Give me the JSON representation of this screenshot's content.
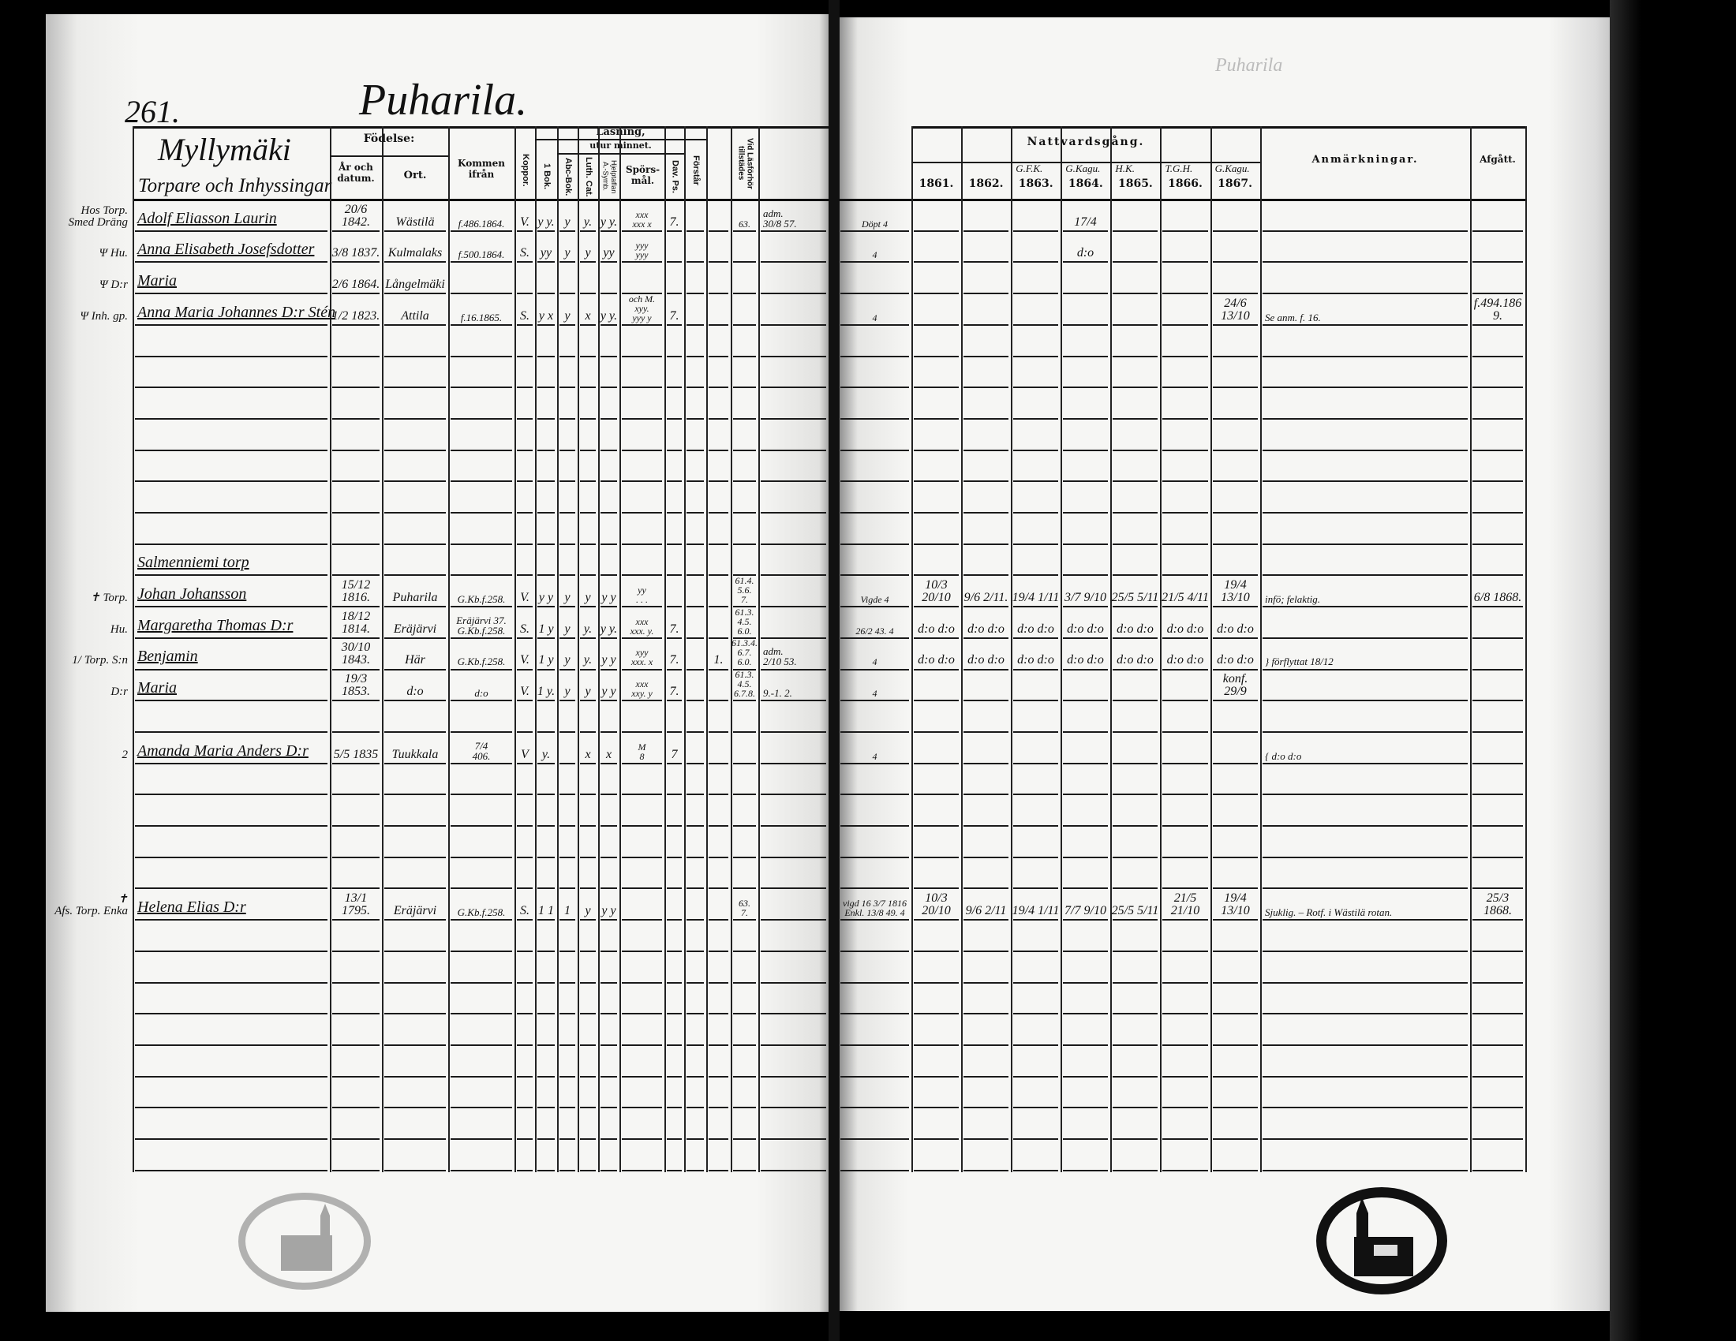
{
  "document": {
    "page_number": "261.",
    "village_title": "Puharila.",
    "right_page_pencil_note": "Puharila",
    "left_header": {
      "section_title": "Myllymäki",
      "section_subtitle": "Torpare och Inhyssingar",
      "birth_group": "Födelse:",
      "birth_date": "År och datum.",
      "birth_place": "Ort.",
      "came_from": "Kommen ifrån",
      "smallpox": "Koppor.",
      "reading_group": "Läsning,",
      "by_heart_group": "utur minnet.",
      "book1": "1 Bok.",
      "abc_book": "Abc-Bok.",
      "luth_cat": "Luth. Cat.",
      "help_symb": "Hjelptaflan A.-Symb.",
      "questions": "Spörs-mål.",
      "dav_ps": "Dav. Ps.",
      "understands": "Förstår",
      "exam_present": "Vid Läsförhör tillstädes"
    },
    "right_header": {
      "communion_group": "Nattvardsgång.",
      "years": [
        {
          "year": "1861.",
          "note": ""
        },
        {
          "year": "1862.",
          "note": ""
        },
        {
          "year": "1863.",
          "note": "G.F.K."
        },
        {
          "year": "1864.",
          "note": "G.Kagu."
        },
        {
          "year": "1865.",
          "note": "H.K."
        },
        {
          "year": "1866.",
          "note": "T.G.H."
        },
        {
          "year": "1867.",
          "note": "G.Kagu."
        }
      ],
      "remarks": "Anmärkningar.",
      "departed": "Afgått."
    },
    "left_rows": [
      {
        "margin": "Hos Torp.\nSmed Dräng",
        "name": "Adolf Eliasson Laurin",
        "date": "20/6 1842.",
        "place": "Wästilä",
        "from": "f.486.1864.",
        "koppor": "V.",
        "bok1": "y y.",
        "abc": "y",
        "luth": "y.",
        "hjelp": "y y.",
        "spors": "xxx\nxxx x",
        "dav": "7.",
        "forstar": "",
        "extra": "",
        "lasf": "63.",
        "note": "adm.\n30/8 57."
      },
      {
        "margin": "Ψ Hu.",
        "name": "Anna Elisabeth Josefsdotter",
        "date": "3/8 1837.",
        "place": "Kulmalaks",
        "from": "f.500.1864.",
        "koppor": "S.",
        "bok1": "yy",
        "abc": "y",
        "luth": "y",
        "hjelp": "yy",
        "spors": "yyy\nyyy",
        "dav": "",
        "forstar": "",
        "extra": "",
        "lasf": "",
        "note": ""
      },
      {
        "margin": "Ψ D:r",
        "name": "Maria",
        "date": "2/6 1864.",
        "place": "Långelmäki"
      },
      {
        "margin": "Ψ Inh. gp.",
        "name": "Anna Maria Johannes D:r Stén",
        "date": "1/2 1823.",
        "place": "Attila",
        "from": "f.16.1865.",
        "koppor": "S.",
        "bok1": "y x",
        "abc": "y",
        "luth": "x",
        "hjelp": "y y.",
        "spors": "och M.\nxyy.\nyyy y",
        "dav": "7."
      },
      {},
      {},
      {},
      {},
      {},
      {},
      {},
      {
        "name": "Salmenniemi torp"
      },
      {
        "margin": "✝ Torp.",
        "name": "Johan Johansson",
        "date": "15/12 1816.",
        "place": "Puharila",
        "from": "G.Kb.f.258.",
        "koppor": "V.",
        "bok1": "y y",
        "abc": "y",
        "luth": "y",
        "hjelp": "y y",
        "spors": "yy\n. . .",
        "lasf": "61.4.\n5.6.\n7."
      },
      {
        "margin": "Hu.",
        "name": "Margaretha Thomas D:r",
        "date": "18/12 1814.",
        "place": "Eräjärvi",
        "from": "Eräjärvi 37.\nG.Kb.f.258.",
        "koppor": "S.",
        "bok1": "1 y",
        "abc": "y",
        "luth": "y.",
        "hjelp": "y y.",
        "spors": "xxx\nxxx. y.",
        "dav": "7.",
        "lasf": "61.3.\n4.5.\n6.0."
      },
      {
        "margin": "1/ Torp. S:n",
        "name": "Benjamin",
        "date": "30/10 1843.",
        "place": "Här",
        "from": "G.Kb.f.258.",
        "koppor": "V.",
        "bok1": "1 y",
        "abc": "y",
        "luth": "y.",
        "hjelp": "y y",
        "spors": "xyy\nxxx. x",
        "dav": "7.",
        "extra": "1.",
        "lasf": "61.3.4.\n6.7.\n6.0.",
        "note": "adm.\n2/10 53."
      },
      {
        "margin": "D:r",
        "name": "Maria",
        "date": "19/3 1853.",
        "place": "d:o",
        "from": "d:o",
        "koppor": "V.",
        "bok1": "1 y.",
        "abc": "y",
        "luth": "y",
        "hjelp": "y y",
        "spors": "xxx\nxxy. y",
        "dav": "7.",
        "lasf": "61.3.\n4.5.\n6.7.8.",
        "note": "9.-1. 2."
      },
      {},
      {
        "margin": "2",
        "name": "Amanda Maria Anders D:r",
        "date": "5/5 1835",
        "place": "Tuukkala",
        "from": "7/4\n406.",
        "koppor": "V",
        "bok1": "y.",
        "luth": "x",
        "hjelp": "x",
        "spors": "M\n8",
        "dav": "7"
      },
      {},
      {},
      {},
      {},
      {
        "margin": "✝\nAfs. Torp. Enka",
        "name": "Helena Elias D:r",
        "date": "13/1 1795.",
        "place": "Eräjärvi",
        "from": "G.Kb.f.258.",
        "koppor": "S.",
        "bok1": "1 1",
        "abc": "1",
        "luth": "y",
        "hjelp": "y y",
        "lasf": "63.\n7."
      },
      {},
      {},
      {},
      {},
      {},
      {},
      {},
      {}
    ],
    "right_rows": [
      {
        "pre": "Döpt 4",
        "y1864": "17/4"
      },
      {
        "pre": "4",
        "y1864": "d:o"
      },
      {},
      {
        "pre": "4",
        "y1867": "24/6 13/10",
        "remarks": "Se anm. f. 16.",
        "departed": "f.494.1869."
      },
      {},
      {},
      {},
      {},
      {},
      {},
      {},
      {},
      {
        "pre": "Vigde 4",
        "y1861": "10/3 20/10",
        "y1862": "9/6 2/11.",
        "y1863": "19/4 1/11",
        "y1864": "3/7 9/10",
        "y1865": "25/5 5/11",
        "y1866": "21/5 4/11",
        "y1867": "19/4 13/10",
        "remarks": "infö; felaktig.",
        "departed": "6/8 1868."
      },
      {
        "pre": "26/2 43. 4",
        "y1861": "d:o d:o",
        "y1862": "d:o d:o",
        "y1863": "d:o d:o",
        "y1864": "d:o d:o",
        "y1865": "d:o d:o",
        "y1866": "d:o d:o",
        "y1867": "d:o d:o"
      },
      {
        "pre": "4",
        "y1861": "d:o d:o",
        "y1862": "d:o d:o",
        "y1863": "d:o d:o",
        "y1864": "d:o d:o",
        "y1865": "d:o d:o",
        "y1866": "d:o d:o",
        "y1867": "d:o d:o",
        "remarks": "} förflyttat 18/12"
      },
      {
        "pre": "4",
        "y1867": "konf. 29/9"
      },
      {},
      {
        "pre": "4",
        "remarks": "{ d:o d:o"
      },
      {},
      {},
      {},
      {},
      {
        "pre": "vigd 16 3/7 1816\nEnkl. 13/8 49. 4",
        "y1861": "10/3 20/10",
        "y1862": "9/6 2/11",
        "y1863": "19/4 1/11",
        "y1864": "7/7 9/10",
        "y1865": "25/5 5/11",
        "y1866": "21/5 21/10",
        "y1867": "19/4 13/10",
        "remarks": "Sjuklig. – Rotf. i Wästilä rotan.",
        "departed": "25/3 1868."
      },
      {},
      {},
      {},
      {},
      {},
      {},
      {},
      {}
    ],
    "stamps": [
      {
        "icon": "church-seal-icon",
        "tone": "faint",
        "text": "illegible"
      },
      {
        "icon": "church-seal-icon",
        "tone": "dark",
        "text": "illegible"
      }
    ],
    "colors": {
      "paper": "#f4f4f2",
      "ink": "#111111",
      "background": "#000000"
    }
  }
}
